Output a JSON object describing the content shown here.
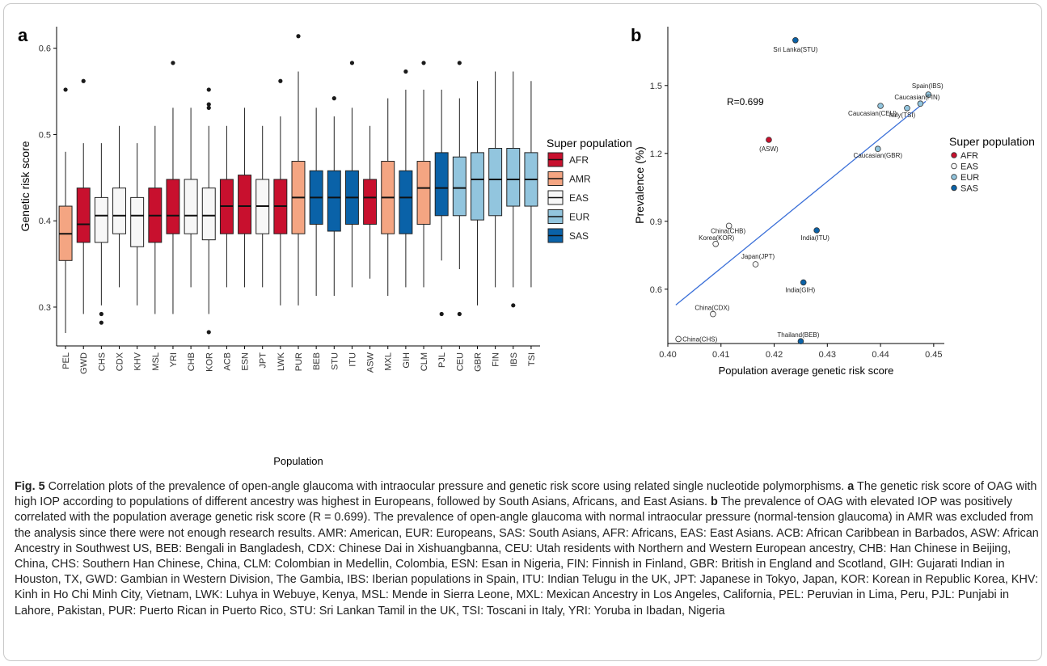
{
  "caption": {
    "fig_label": "Fig. 5",
    "text_1": " Correlation plots of the prevalence of open-angle glaucoma with intraocular pressure and genetic risk score using related single nucleotide polymorphisms. ",
    "a_label": "a",
    "text_2": " The genetic risk score of OAG with high IOP according to populations of different ancestry was highest in Europeans, followed by South Asians, Africans, and East Asians. ",
    "b_label": "b",
    "text_3": " The prevalence of OAG with elevated IOP was positively correlated with the population average genetic risk score (R = 0.699). The prevalence of open-angle glaucoma with normal intraocular pressure (normal-tension glaucoma) in AMR was excluded from the analysis since there were not enough research results. AMR: American, EUR: Europeans, SAS: South Asians, AFR: Africans, EAS: East Asians. ACB: African Caribbean in Barbados, ASW: African Ancestry in Southwest US, BEB: Bengali in Bangladesh, CDX: Chinese Dai in Xishuangbanna, CEU: Utah residents with Northern and Western European ancestry, CHB: Han Chinese in Beijing, China, CHS: Southern Han Chinese, China, CLM: Colombian in Medellin, Colombia, ESN: Esan in Nigeria, FIN: Finnish in Finland, GBR: British in England and Scotland, GIH: Gujarati Indian in Houston, TX, GWD: Gambian in Western Division, The Gambia, IBS: Iberian populations in Spain, ITU: Indian Telugu in the UK, JPT: Japanese in Tokyo, Japan, KOR: Korean in Republic Korea, KHV: Kinh in Ho Chi Minh City, Vietnam, LWK: Luhya in Webuye, Kenya, MSL: Mende in Sierra Leone, MXL: Mexican Ancestry in Los Angeles, California, PEL: Peruvian in Lima, Peru, PJL: Punjabi in Lahore, Pakistan, PUR: Puerto Rican in Puerto Rico, STU: Sri Lankan Tamil in the UK, TSI: Toscani in Italy, YRI: Yoruba in Ibadan, Nigeria"
  },
  "colors": {
    "AFR": "#c8102e",
    "AMR": "#f4a582",
    "EAS": "#f7f7f7",
    "EUR": "#92c5de",
    "SAS": "#0a62a8"
  },
  "chart_data": [
    {
      "type": "box",
      "panel_label": "a",
      "xlabel": "Population",
      "ylabel": "Genetic risk score",
      "ylim": [
        0.255,
        0.625
      ],
      "yticks": [
        0.3,
        0.4,
        0.5,
        0.6
      ],
      "ytick_labels": [
        "0.3",
        "0.4",
        "0.5",
        "0.6"
      ],
      "legend": {
        "title": "Super population",
        "entries": [
          "AFR",
          "AMR",
          "EAS",
          "EUR",
          "SAS"
        ],
        "position": "right"
      },
      "boxes": [
        {
          "pop": "PEL",
          "sp": "AMR",
          "wlo": 0.27,
          "q1": 0.354,
          "med": 0.385,
          "q3": 0.417,
          "whi": 0.48,
          "out": [
            0.552
          ]
        },
        {
          "pop": "GWD",
          "sp": "AFR",
          "wlo": 0.292,
          "q1": 0.375,
          "med": 0.396,
          "q3": 0.438,
          "whi": 0.49,
          "out": [
            0.562
          ]
        },
        {
          "pop": "CHS",
          "sp": "EAS",
          "wlo": 0.302,
          "q1": 0.375,
          "med": 0.406,
          "q3": 0.427,
          "whi": 0.49,
          "out": [
            0.292,
            0.282
          ]
        },
        {
          "pop": "CDX",
          "sp": "EAS",
          "wlo": 0.323,
          "q1": 0.385,
          "med": 0.406,
          "q3": 0.438,
          "whi": 0.51,
          "out": []
        },
        {
          "pop": "KHV",
          "sp": "EAS",
          "wlo": 0.302,
          "q1": 0.37,
          "med": 0.406,
          "q3": 0.427,
          "whi": 0.49,
          "out": []
        },
        {
          "pop": "MSL",
          "sp": "AFR",
          "wlo": 0.292,
          "q1": 0.375,
          "med": 0.406,
          "q3": 0.438,
          "whi": 0.51,
          "out": []
        },
        {
          "pop": "YRI",
          "sp": "AFR",
          "wlo": 0.292,
          "q1": 0.385,
          "med": 0.406,
          "q3": 0.448,
          "whi": 0.531,
          "out": [
            0.583
          ]
        },
        {
          "pop": "CHB",
          "sp": "EAS",
          "wlo": 0.323,
          "q1": 0.385,
          "med": 0.406,
          "q3": 0.448,
          "whi": 0.531,
          "out": []
        },
        {
          "pop": "KOR",
          "sp": "EAS",
          "wlo": 0.292,
          "q1": 0.378,
          "med": 0.406,
          "q3": 0.438,
          "whi": 0.51,
          "out": [
            0.552,
            0.535,
            0.531,
            0.271
          ]
        },
        {
          "pop": "ACB",
          "sp": "AFR",
          "wlo": 0.323,
          "q1": 0.385,
          "med": 0.417,
          "q3": 0.448,
          "whi": 0.51,
          "out": []
        },
        {
          "pop": "ESN",
          "sp": "AFR",
          "wlo": 0.323,
          "q1": 0.385,
          "med": 0.417,
          "q3": 0.453,
          "whi": 0.531,
          "out": []
        },
        {
          "pop": "JPT",
          "sp": "EAS",
          "wlo": 0.323,
          "q1": 0.385,
          "med": 0.417,
          "q3": 0.448,
          "whi": 0.51,
          "out": []
        },
        {
          "pop": "LWK",
          "sp": "AFR",
          "wlo": 0.302,
          "q1": 0.385,
          "med": 0.417,
          "q3": 0.448,
          "whi": 0.521,
          "out": [
            0.562
          ]
        },
        {
          "pop": "PUR",
          "sp": "AMR",
          "wlo": 0.302,
          "q1": 0.385,
          "med": 0.427,
          "q3": 0.469,
          "whi": 0.573,
          "out": [
            0.614
          ]
        },
        {
          "pop": "BEB",
          "sp": "SAS",
          "wlo": 0.313,
          "q1": 0.396,
          "med": 0.427,
          "q3": 0.458,
          "whi": 0.531,
          "out": []
        },
        {
          "pop": "STU",
          "sp": "SAS",
          "wlo": 0.313,
          "q1": 0.388,
          "med": 0.427,
          "q3": 0.458,
          "whi": 0.521,
          "out": [
            0.542
          ]
        },
        {
          "pop": "ITU",
          "sp": "SAS",
          "wlo": 0.323,
          "q1": 0.396,
          "med": 0.427,
          "q3": 0.458,
          "whi": 0.531,
          "out": [
            0.583
          ]
        },
        {
          "pop": "ASW",
          "sp": "AFR",
          "wlo": 0.333,
          "q1": 0.396,
          "med": 0.427,
          "q3": 0.448,
          "whi": 0.51,
          "out": []
        },
        {
          "pop": "MXL",
          "sp": "AMR",
          "wlo": 0.313,
          "q1": 0.385,
          "med": 0.427,
          "q3": 0.469,
          "whi": 0.542,
          "out": []
        },
        {
          "pop": "GIH",
          "sp": "SAS",
          "wlo": 0.323,
          "q1": 0.385,
          "med": 0.427,
          "q3": 0.458,
          "whi": 0.552,
          "out": [
            0.573
          ]
        },
        {
          "pop": "CLM",
          "sp": "AMR",
          "wlo": 0.323,
          "q1": 0.396,
          "med": 0.438,
          "q3": 0.469,
          "whi": 0.552,
          "out": [
            0.583
          ]
        },
        {
          "pop": "PJL",
          "sp": "SAS",
          "wlo": 0.354,
          "q1": 0.406,
          "med": 0.438,
          "q3": 0.479,
          "whi": 0.552,
          "out": [
            0.292
          ]
        },
        {
          "pop": "CEU",
          "sp": "EUR",
          "wlo": 0.344,
          "q1": 0.406,
          "med": 0.438,
          "q3": 0.474,
          "whi": 0.542,
          "out": [
            0.583,
            0.292
          ]
        },
        {
          "pop": "GBR",
          "sp": "EUR",
          "wlo": 0.302,
          "q1": 0.401,
          "med": 0.448,
          "q3": 0.479,
          "whi": 0.562,
          "out": []
        },
        {
          "pop": "FIN",
          "sp": "EUR",
          "wlo": 0.323,
          "q1": 0.406,
          "med": 0.448,
          "q3": 0.484,
          "whi": 0.573,
          "out": []
        },
        {
          "pop": "IBS",
          "sp": "EUR",
          "wlo": 0.323,
          "q1": 0.417,
          "med": 0.448,
          "q3": 0.484,
          "whi": 0.573,
          "out": [
            0.302
          ]
        },
        {
          "pop": "TSI",
          "sp": "EUR",
          "wlo": 0.323,
          "q1": 0.417,
          "med": 0.448,
          "q3": 0.479,
          "whi": 0.562,
          "out": []
        }
      ]
    },
    {
      "type": "scatter",
      "panel_label": "b",
      "xlabel": "Population average genetic risk score",
      "ylabel": "Prevalence (%)",
      "xlim": [
        0.4,
        0.452
      ],
      "ylim": [
        0.36,
        1.76
      ],
      "xticks": [
        0.4,
        0.41,
        0.42,
        0.43,
        0.44,
        0.45
      ],
      "xtick_labels": [
        "0.40",
        "0.41",
        "0.42",
        "0.43",
        "0.44",
        "0.45"
      ],
      "yticks": [
        0.6,
        0.9,
        1.2,
        1.5
      ],
      "ytick_labels": [
        "0.6",
        "0.9",
        "1.2",
        "1.5"
      ],
      "annotation": "R=0.699",
      "fit_line": {
        "x": [
          0.4015,
          0.4485
        ],
        "y": [
          0.53,
          1.43
        ]
      },
      "legend": {
        "title": "Super population",
        "entries": [
          "AFR",
          "EAS",
          "EUR",
          "SAS"
        ],
        "position": "right"
      },
      "points": [
        {
          "label": "Sri Lanka(STU)",
          "sp": "SAS",
          "x": 0.424,
          "y": 1.7
        },
        {
          "label": "Spain(IBS)",
          "sp": "EUR",
          "x": 0.449,
          "y": 1.46
        },
        {
          "label": "Caucasian(FIN)",
          "sp": "EUR",
          "x": 0.4475,
          "y": 1.42
        },
        {
          "label": "Caucasian(CEU)",
          "sp": "EUR",
          "x": 0.44,
          "y": 1.41
        },
        {
          "label": "Italy(TSI)",
          "sp": "EUR",
          "x": 0.445,
          "y": 1.4
        },
        {
          "label": "(ASW)",
          "sp": "AFR",
          "x": 0.419,
          "y": 1.26
        },
        {
          "label": "Caucasian(GBR)",
          "sp": "EUR",
          "x": 0.4395,
          "y": 1.22
        },
        {
          "label": "China(CHB)",
          "sp": "EAS",
          "x": 0.4115,
          "y": 0.88
        },
        {
          "label": "India(ITU)",
          "sp": "SAS",
          "x": 0.428,
          "y": 0.86
        },
        {
          "label": "Korea(KOR)",
          "sp": "EAS",
          "x": 0.409,
          "y": 0.8
        },
        {
          "label": "Japan(JPT)",
          "sp": "EAS",
          "x": 0.4165,
          "y": 0.71
        },
        {
          "label": "India(GIH)",
          "sp": "SAS",
          "x": 0.4255,
          "y": 0.63
        },
        {
          "label": "China(CDX)",
          "sp": "EAS",
          "x": 0.4085,
          "y": 0.49
        },
        {
          "label": "China(CHS)",
          "sp": "EAS",
          "x": 0.402,
          "y": 0.38
        },
        {
          "label": "Thailand(BEB)",
          "sp": "SAS",
          "x": 0.425,
          "y": 0.37
        }
      ]
    }
  ]
}
